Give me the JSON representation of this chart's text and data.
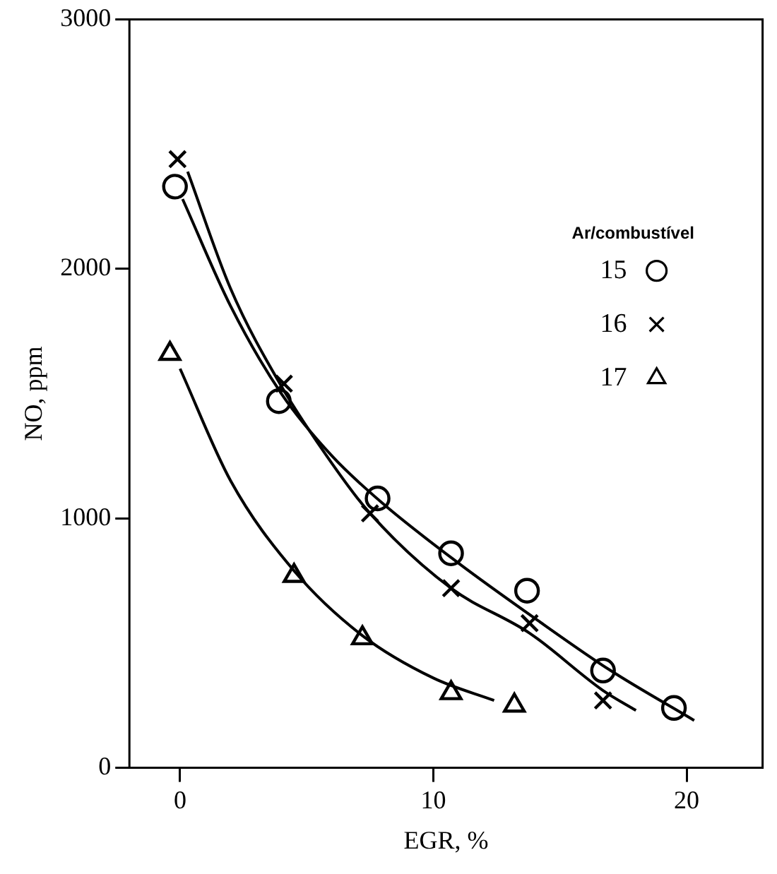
{
  "chart_data": {
    "type": "scatter",
    "xlabel": "EGR, %",
    "ylabel": "NO, ppm",
    "legend_title": "Ar/combustível",
    "legend": "top right",
    "grid": false,
    "xlim": [
      -2,
      23
    ],
    "xticks": [
      0,
      10,
      20
    ],
    "ylim": [
      0,
      3000
    ],
    "yticks": [
      0,
      1000,
      2000,
      3000
    ],
    "series": [
      {
        "name": "15",
        "marker": "circle",
        "color": "#000000",
        "x": [
          -0.2,
          3.9,
          7.8,
          10.7,
          13.7,
          16.7,
          19.5
        ],
        "values": [
          2330,
          1470,
          1080,
          860,
          710,
          390,
          240
        ]
      },
      {
        "name": "16",
        "marker": "cross",
        "color": "#000000",
        "x": [
          -0.1,
          4.1,
          7.5,
          10.7,
          13.8,
          16.7
        ],
        "values": [
          2440,
          1540,
          1020,
          720,
          580,
          270
        ]
      },
      {
        "name": "17",
        "marker": "triangle",
        "color": "#000000",
        "x": [
          -0.4,
          4.5,
          7.2,
          10.7,
          13.2
        ],
        "values": [
          1660,
          770,
          520,
          300,
          250
        ]
      },
      {
        "type": "line",
        "marker": "none",
        "color": "#000000",
        "x": [
          0.1,
          2,
          4,
          6,
          8,
          11,
          14,
          17,
          20.3
        ],
        "values": [
          2280,
          1850,
          1500,
          1250,
          1060,
          820,
          600,
          390,
          190
        ]
      },
      {
        "type": "line",
        "marker": "none",
        "color": "#000000",
        "x": [
          0.3,
          2,
          4,
          6,
          7.5,
          10.7,
          13.8,
          16.7,
          18
        ],
        "values": [
          2390,
          1920,
          1530,
          1220,
          1020,
          720,
          540,
          310,
          230
        ]
      },
      {
        "type": "line",
        "marker": "none",
        "color": "#000000",
        "x": [
          0,
          2,
          4.5,
          7.2,
          10,
          12.4
        ],
        "values": [
          1600,
          1150,
          790,
          530,
          360,
          270
        ]
      }
    ]
  }
}
